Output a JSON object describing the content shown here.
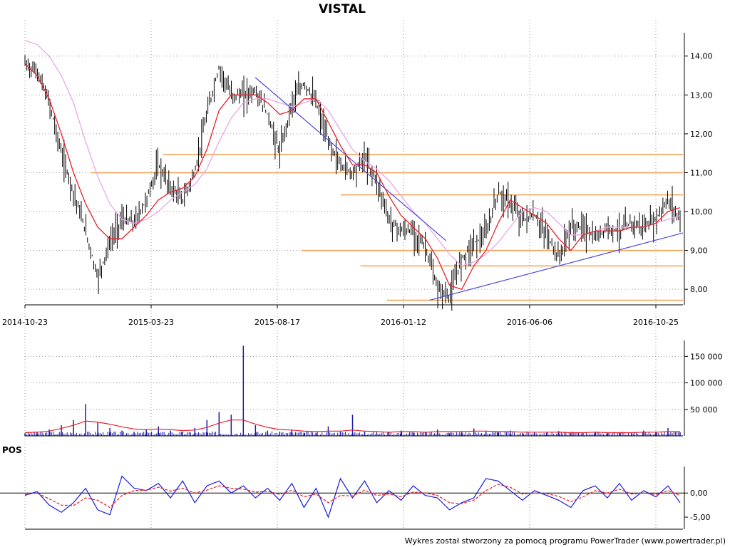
{
  "chart_data": {
    "type": "line",
    "title": "VISTAL",
    "credit": "Wykres został stworzony za pomocą programu PowerTrader (www.powertrader.pl)",
    "x_ticks": [
      "2014-10-23",
      "2015-03-23",
      "2015-08-17",
      "2016-01-12",
      "2016-06-06",
      "2016-10-25"
    ],
    "price": {
      "ylim": [
        7.6,
        14.6
      ],
      "y_ticks": [
        "8,00",
        "9,00",
        "10,00",
        "11,00",
        "12,00",
        "13,00",
        "14,00"
      ],
      "colors": {
        "candles": "#000000",
        "ma_short": "#e8202a",
        "ma_long": "#e8a7e8",
        "levels": "#f5a050",
        "trend": "#4a4ade"
      },
      "close": [
        13.8,
        13.6,
        12.8,
        11.5,
        10.5,
        9.5,
        8.3,
        9.2,
        9.8,
        9.7,
        10.3,
        11.2,
        10.6,
        10.3,
        11.0,
        12.5,
        13.7,
        13.0,
        13.0,
        13.1,
        12.5,
        11.5,
        12.8,
        13.3,
        12.8,
        11.8,
        11.2,
        11.0,
        11.4,
        10.8,
        9.8,
        9.5,
        9.5,
        9.1,
        8.0,
        7.8,
        8.8,
        9.2,
        9.4,
        10.5,
        10.2,
        9.8,
        9.9,
        9.4,
        8.8,
        9.6,
        9.6,
        9.3,
        9.6,
        9.5,
        9.7,
        9.6,
        9.8,
        10.3,
        9.8
      ],
      "ma_short": [
        13.8,
        13.5,
        12.9,
        12.0,
        11.0,
        10.2,
        9.6,
        9.3,
        9.3,
        9.6,
        9.9,
        10.3,
        10.5,
        10.6,
        10.9,
        11.6,
        12.6,
        13.0,
        13.0,
        13.0,
        12.8,
        12.5,
        12.6,
        12.9,
        12.9,
        12.3,
        11.7,
        11.2,
        11.2,
        11.0,
        10.4,
        9.9,
        9.6,
        9.3,
        8.8,
        8.1,
        8.0,
        8.6,
        9.0,
        9.7,
        10.3,
        10.1,
        9.9,
        9.7,
        9.3,
        9.0,
        9.4,
        9.5,
        9.5,
        9.5,
        9.6,
        9.6,
        9.7,
        10.0,
        10.1
      ],
      "ma_long": [
        14.4,
        14.3,
        14.0,
        13.5,
        12.8,
        11.8,
        10.9,
        10.2,
        9.8,
        9.7,
        9.8,
        10.0,
        10.3,
        10.5,
        10.7,
        11.1,
        11.8,
        12.4,
        12.8,
        12.9,
        12.9,
        12.8,
        12.7,
        12.8,
        12.9,
        12.6,
        12.1,
        11.6,
        11.3,
        11.1,
        10.8,
        10.4,
        10.0,
        9.7,
        9.3,
        8.9,
        8.6,
        8.7,
        8.9,
        9.2,
        9.6,
        10.0,
        10.1,
        10.0,
        9.7,
        9.4,
        9.4,
        9.5,
        9.6,
        9.6,
        9.6,
        9.6,
        9.7,
        9.8,
        9.9
      ],
      "levels": [
        {
          "y": 11.47,
          "from": 0.21
        },
        {
          "y": 11.0,
          "from": 0.1
        },
        {
          "y": 10.43,
          "from": 0.48
        },
        {
          "y": 9.0,
          "from": 0.42
        },
        {
          "y": 8.6,
          "from": 0.51
        },
        {
          "y": 7.72,
          "from": 0.55
        }
      ],
      "trendlines": [
        {
          "x": [
            0.35,
            0.64
          ],
          "y": [
            13.45,
            9.25
          ]
        },
        {
          "x": [
            0.615,
            1.0
          ],
          "y": [
            7.72,
            9.45
          ]
        }
      ]
    },
    "volume": {
      "ylim": [
        0,
        180000
      ],
      "y_ticks": [
        "50 000",
        "100 000",
        "150 000"
      ],
      "colors": {
        "bars": "#1a1aa8",
        "ma": "#e8202a"
      },
      "values": [
        5000,
        8000,
        12000,
        20000,
        30000,
        60000,
        25000,
        15000,
        10000,
        8000,
        12000,
        18000,
        10000,
        8000,
        15000,
        30000,
        45000,
        40000,
        170000,
        20000,
        10000,
        8000,
        12000,
        6000,
        5000,
        18000,
        8000,
        40000,
        8000,
        5000,
        7000,
        10000,
        6000,
        8000,
        12000,
        5000,
        9000,
        14000,
        8000,
        6000,
        10000,
        5000,
        7000,
        6000,
        9000,
        5000,
        6000,
        8000,
        5000,
        7000,
        6000,
        10000,
        8000,
        15000,
        7000
      ],
      "ma": [
        6000,
        7000,
        9000,
        14000,
        20000,
        28000,
        26000,
        22000,
        17000,
        13000,
        12000,
        13000,
        12000,
        10000,
        11000,
        16000,
        24000,
        30000,
        30000,
        22000,
        16000,
        12000,
        11000,
        9000,
        8000,
        9000,
        9000,
        11000,
        9000,
        8000,
        7000,
        8000,
        8000,
        7000,
        8000,
        8000,
        8000,
        9000,
        9000,
        8000,
        8000,
        7000,
        7000,
        7000,
        7000,
        6000,
        6000,
        7000,
        6000,
        6000,
        6000,
        7000,
        7000,
        8000,
        8000
      ]
    },
    "oscillator": {
      "label": "POS",
      "ylim": [
        -7.5,
        5.5
      ],
      "y_ticks": [
        "0,00",
        "-5,00"
      ],
      "colors": {
        "pos": "#1a1ae0",
        "signal": "#e8202a",
        "zero": "#000000"
      },
      "pos": [
        -0.5,
        0.3,
        -2.5,
        -4.0,
        -2.0,
        1.0,
        -3.5,
        -4.5,
        3.5,
        1.0,
        0.5,
        2.0,
        -1.0,
        2.5,
        -2.0,
        1.5,
        2.5,
        0.0,
        1.5,
        -1.0,
        1.0,
        -1.5,
        2.0,
        -3.0,
        1.0,
        -5.0,
        3.0,
        -1.0,
        2.5,
        -2.0,
        0.5,
        -1.5,
        1.5,
        -0.5,
        -1.0,
        -3.5,
        -2.0,
        -1.0,
        3.0,
        2.5,
        0.5,
        -1.5,
        0.5,
        -0.5,
        -1.5,
        -3.0,
        0.5,
        1.5,
        -1.0,
        2.0,
        -1.5,
        0.5,
        -0.8,
        1.5,
        -2.0
      ],
      "signal": [
        -0.3,
        0.0,
        -1.2,
        -2.5,
        -2.6,
        -1.0,
        -1.5,
        -3.0,
        -0.5,
        0.5,
        0.6,
        1.2,
        0.4,
        1.0,
        0.0,
        0.6,
        1.5,
        1.0,
        0.8,
        0.2,
        0.4,
        -0.3,
        0.6,
        -0.8,
        -0.2,
        -2.0,
        -0.5,
        -0.6,
        0.6,
        -0.5,
        -0.2,
        -0.8,
        0.2,
        0.0,
        -0.5,
        -2.0,
        -2.2,
        -1.5,
        0.5,
        1.8,
        1.2,
        -0.2,
        0.0,
        -0.1,
        -0.7,
        -1.8,
        -0.8,
        0.5,
        0.0,
        0.8,
        -0.2,
        0.0,
        -0.3,
        0.5,
        -0.5
      ]
    }
  }
}
